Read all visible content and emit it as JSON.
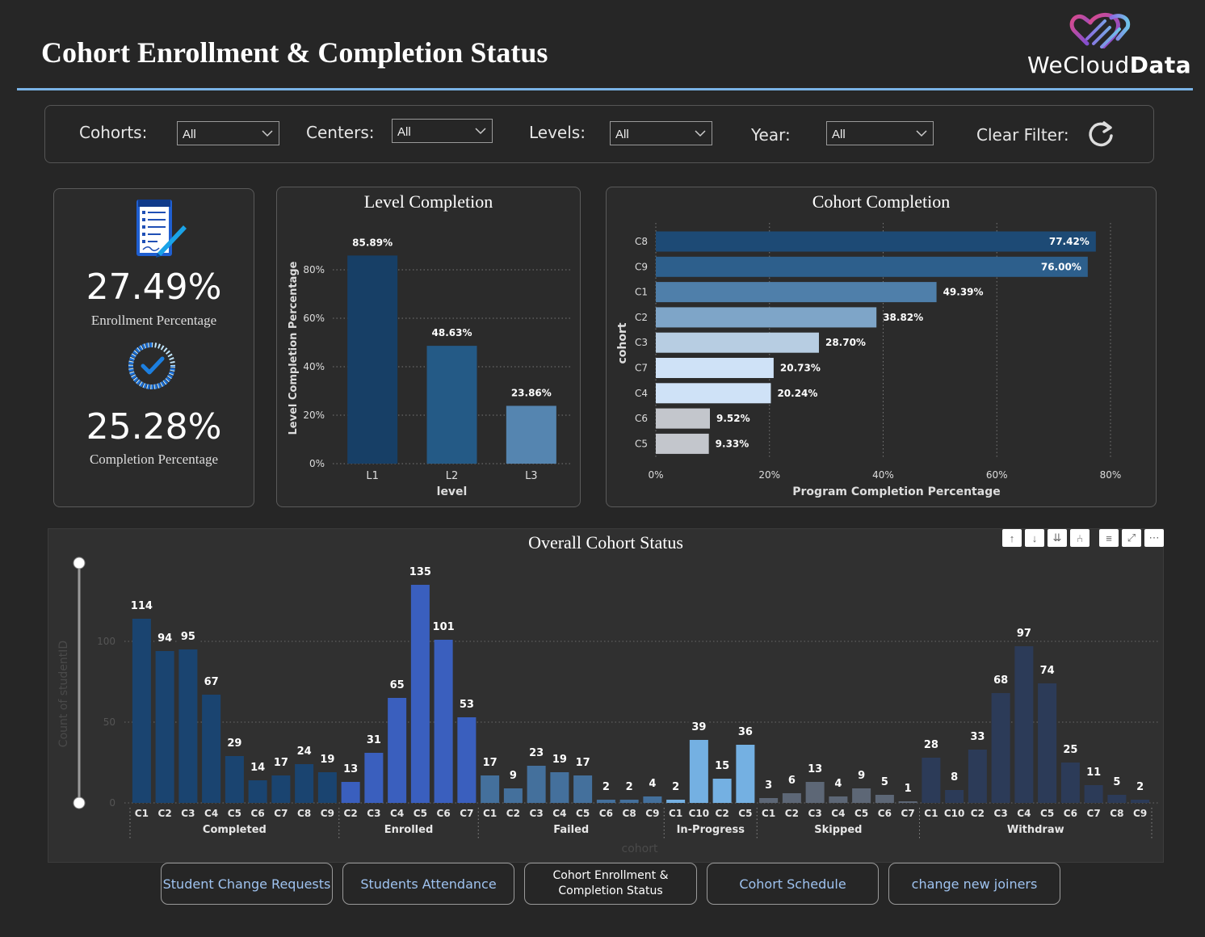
{
  "header": {
    "title": "Cohort Enrollment & Completion Status",
    "brand": {
      "prefix": "WeCloud",
      "suffix": "Data"
    }
  },
  "filters": {
    "cohorts": {
      "label": "Cohorts:",
      "value": "All"
    },
    "centers": {
      "label": "Centers:",
      "value": "All"
    },
    "levels": {
      "label": "Levels:",
      "value": "All"
    },
    "year": {
      "label": "Year:",
      "value": "All"
    },
    "clear": {
      "label": "Clear Filter:"
    }
  },
  "kpis": {
    "enrollment": {
      "value": "27.49%",
      "label": "Enrollment Percentage",
      "icon": "document-pen-icon"
    },
    "completion": {
      "value": "25.28%",
      "label": "Completion Percentage",
      "icon": "progress-check-icon"
    }
  },
  "chart_data": [
    {
      "id": "level",
      "type": "bar",
      "title": "Level Completion",
      "xlabel": "level",
      "ylabel": "Level Completion Percentage",
      "categories": [
        "L1",
        "L2",
        "L3"
      ],
      "values": [
        85.89,
        48.63,
        23.86
      ],
      "value_labels": [
        "85.89%",
        "48.63%",
        "23.86%"
      ],
      "y_ticks": [
        "0%",
        "20%",
        "40%",
        "60%",
        "80%"
      ],
      "ylim": [
        0,
        90
      ],
      "colors": [
        "#173f66",
        "#245a86",
        "#5585b0"
      ],
      "grid": true
    },
    {
      "id": "cohort",
      "type": "bar",
      "orientation": "horizontal",
      "title": "Cohort Completion",
      "xlabel": "Program Completion Percentage",
      "ylabel": "cohort",
      "categories": [
        "C8",
        "C9",
        "C1",
        "C2",
        "C3",
        "C7",
        "C4",
        "C6",
        "C5"
      ],
      "values": [
        77.42,
        76.0,
        49.39,
        38.82,
        28.7,
        20.73,
        20.24,
        9.52,
        9.33
      ],
      "value_labels": [
        "77.42%",
        "76.00%",
        "49.39%",
        "38.82%",
        "28.70%",
        "20.73%",
        "20.24%",
        "9.52%",
        "9.33%"
      ],
      "x_ticks": [
        "0%",
        "20%",
        "40%",
        "60%",
        "80%"
      ],
      "xlim": [
        0,
        80
      ],
      "colors": [
        "#1d4a75",
        "#2d5f8c",
        "#4f7faa",
        "#7ea5c8",
        "#b7cde2",
        "#cfe2f7",
        "#cfe2f7",
        "#c3c6cc",
        "#c3c6cc"
      ],
      "grid": true
    },
    {
      "id": "status",
      "type": "bar",
      "title": "Overall Cohort Status",
      "xlabel": "cohort",
      "ylabel": "Count of studentID",
      "y_ticks": [
        "0",
        "50",
        "100"
      ],
      "ylim": [
        0,
        140
      ],
      "grid": true,
      "groups": [
        {
          "name": "Completed",
          "color": "#1a4470",
          "categories": [
            "C1",
            "C2",
            "C3",
            "C4",
            "C5",
            "C6",
            "C7",
            "C8",
            "C9"
          ],
          "values": [
            114,
            94,
            95,
            67,
            29,
            14,
            17,
            24,
            19
          ]
        },
        {
          "name": "Enrolled",
          "color": "#3a5fbe",
          "categories": [
            "C2",
            "C3",
            "C4",
            "C5",
            "C6",
            "C7"
          ],
          "values": [
            13,
            31,
            65,
            135,
            101,
            53
          ]
        },
        {
          "name": "Failed",
          "color": "#44709c",
          "categories": [
            "C1",
            "C2",
            "C3",
            "C4",
            "C5",
            "C6",
            "C8",
            "C9"
          ],
          "values": [
            17,
            9,
            23,
            19,
            17,
            2,
            2,
            4
          ]
        },
        {
          "name": "In-Progress",
          "color": "#74b0e2",
          "categories": [
            "C1",
            "C10",
            "C2",
            "C5"
          ],
          "values": [
            2,
            39,
            15,
            36
          ]
        },
        {
          "name": "Skipped",
          "color": "#5d6776",
          "categories": [
            "C1",
            "C2",
            "C3",
            "C4",
            "C5",
            "C6",
            "C7"
          ],
          "values": [
            3,
            6,
            13,
            4,
            9,
            5,
            1
          ]
        },
        {
          "name": "Withdraw",
          "color": "#2c3b58",
          "categories": [
            "C1",
            "C10",
            "C2",
            "C3",
            "C4",
            "C5",
            "C6",
            "C7",
            "C8",
            "C9"
          ],
          "values": [
            28,
            8,
            33,
            68,
            97,
            74,
            25,
            11,
            5,
            2
          ]
        }
      ]
    }
  ],
  "nav": {
    "b1": "Student Change Requests",
    "b2": "Students Attendance",
    "b3_l1": "Cohort Enrollment &",
    "b3_l2": "Completion Status",
    "b4": "Cohort Schedule",
    "b5": "change new joiners"
  }
}
